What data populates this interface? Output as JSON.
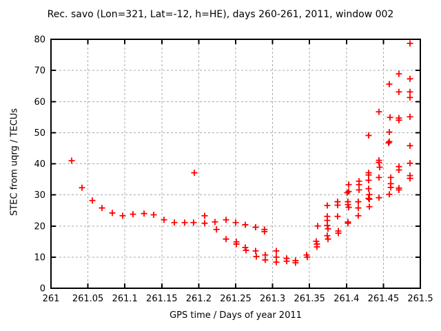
{
  "chart_data": {
    "type": "scatter",
    "title": "Rec. savo (Lon=321, Lat=-12, h=HE), days 260-261, 2011, window 002",
    "xlabel": "GPS time / Days of year 2011",
    "ylabel": "STEC from uqrg / TECUs",
    "xlim": [
      261,
      261.5
    ],
    "ylim": [
      0,
      80
    ],
    "xticks": [
      261,
      261.05,
      261.1,
      261.15,
      261.2,
      261.25,
      261.3,
      261.35,
      261.4,
      261.45,
      261.5
    ],
    "xtick_labels": [
      "261",
      "261.05",
      "261.1",
      "261.15",
      "261.2",
      "261.25",
      "261.3",
      "261.35",
      "261.4",
      "261.45",
      "261.5"
    ],
    "yticks": [
      0,
      10,
      20,
      30,
      40,
      50,
      60,
      70,
      80
    ],
    "ytick_labels": [
      "0",
      "10",
      "20",
      "30",
      "40",
      "50",
      "60",
      "70",
      "80"
    ],
    "grid": true,
    "legend_position": "none",
    "marker": "plus",
    "marker_color": "#ff0000",
    "series": [
      {
        "name": "STEC",
        "points": [
          [
            261.028,
            41.0
          ],
          [
            261.042,
            32.3
          ],
          [
            261.056,
            28.2
          ],
          [
            261.069,
            25.8
          ],
          [
            261.083,
            24.2
          ],
          [
            261.097,
            23.3
          ],
          [
            261.111,
            23.8
          ],
          [
            261.126,
            24.0
          ],
          [
            261.139,
            23.6
          ],
          [
            261.153,
            22.0
          ],
          [
            261.167,
            21.1
          ],
          [
            261.181,
            21.1
          ],
          [
            261.193,
            21.1
          ],
          [
            261.194,
            37.1
          ],
          [
            261.208,
            23.3
          ],
          [
            261.208,
            20.9
          ],
          [
            261.222,
            21.3
          ],
          [
            261.224,
            18.9
          ],
          [
            261.237,
            22.0
          ],
          [
            261.237,
            15.8
          ],
          [
            261.25,
            21.1
          ],
          [
            261.251,
            14.9
          ],
          [
            261.251,
            14.2
          ],
          [
            261.263,
            20.4
          ],
          [
            261.263,
            13.1
          ],
          [
            261.264,
            12.2
          ],
          [
            261.277,
            19.6
          ],
          [
            261.277,
            12.0
          ],
          [
            261.278,
            10.2
          ],
          [
            261.289,
            18.9
          ],
          [
            261.289,
            18.2
          ],
          [
            261.29,
            10.7
          ],
          [
            261.29,
            9.1
          ],
          [
            261.305,
            12.0
          ],
          [
            261.305,
            10.0
          ],
          [
            261.305,
            8.4
          ],
          [
            261.319,
            9.6
          ],
          [
            261.319,
            8.7
          ],
          [
            261.331,
            8.9
          ],
          [
            261.331,
            8.2
          ],
          [
            261.346,
            10.7
          ],
          [
            261.347,
            10.0
          ],
          [
            261.359,
            15.1
          ],
          [
            261.36,
            14.2
          ],
          [
            261.36,
            13.3
          ],
          [
            261.361,
            20.0
          ],
          [
            261.374,
            26.6
          ],
          [
            261.374,
            23.1
          ],
          [
            261.374,
            21.8
          ],
          [
            261.374,
            20.2
          ],
          [
            261.375,
            19.1
          ],
          [
            261.374,
            16.9
          ],
          [
            261.375,
            15.8
          ],
          [
            261.388,
            27.8
          ],
          [
            261.388,
            26.7
          ],
          [
            261.388,
            23.1
          ],
          [
            261.389,
            18.4
          ],
          [
            261.389,
            17.7
          ],
          [
            261.401,
            30.7
          ],
          [
            261.403,
            33.3
          ],
          [
            261.403,
            31.1
          ],
          [
            261.402,
            27.8
          ],
          [
            261.402,
            26.9
          ],
          [
            261.403,
            26.0
          ],
          [
            261.402,
            21.3
          ],
          [
            261.402,
            20.9
          ],
          [
            261.417,
            34.4
          ],
          [
            261.417,
            33.3
          ],
          [
            261.417,
            31.6
          ],
          [
            261.416,
            27.8
          ],
          [
            261.416,
            25.8
          ],
          [
            261.416,
            23.3
          ],
          [
            261.43,
            49.1
          ],
          [
            261.43,
            37.1
          ],
          [
            261.43,
            36.4
          ],
          [
            261.43,
            34.7
          ],
          [
            261.43,
            32.0
          ],
          [
            261.431,
            30.1
          ],
          [
            261.43,
            28.9
          ],
          [
            261.431,
            28.6
          ],
          [
            261.431,
            26.2
          ],
          [
            261.444,
            56.7
          ],
          [
            261.444,
            41.1
          ],
          [
            261.444,
            40.4
          ],
          [
            261.445,
            38.9
          ],
          [
            261.444,
            35.6
          ],
          [
            261.444,
            29.1
          ],
          [
            261.458,
            65.6
          ],
          [
            261.459,
            54.9
          ],
          [
            261.458,
            50.2
          ],
          [
            261.458,
            47.1
          ],
          [
            261.457,
            46.7
          ],
          [
            261.46,
            35.6
          ],
          [
            261.46,
            33.6
          ],
          [
            261.46,
            32.4
          ],
          [
            261.458,
            30.2
          ],
          [
            261.471,
            68.9
          ],
          [
            261.471,
            63.1
          ],
          [
            261.471,
            54.7
          ],
          [
            261.471,
            54.0
          ],
          [
            261.471,
            39.1
          ],
          [
            261.471,
            38.0
          ],
          [
            261.471,
            32.2
          ],
          [
            261.471,
            31.6
          ],
          [
            261.486,
            78.7
          ],
          [
            261.486,
            67.3
          ],
          [
            261.486,
            63.1
          ],
          [
            261.486,
            61.3
          ],
          [
            261.486,
            55.1
          ],
          [
            261.486,
            45.8
          ],
          [
            261.486,
            40.2
          ],
          [
            261.486,
            36.2
          ],
          [
            261.486,
            35.3
          ]
        ]
      }
    ]
  }
}
